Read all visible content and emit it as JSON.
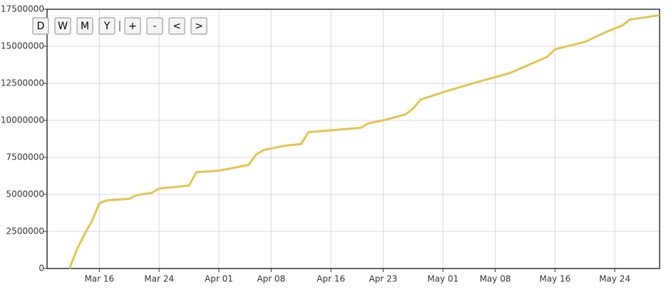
{
  "chart_data": {
    "type": "line",
    "x": [
      "Mar 12",
      "Mar 13",
      "Mar 14",
      "Mar 15",
      "Mar 16",
      "Mar 17",
      "Mar 20",
      "Mar 21",
      "Mar 23",
      "Mar 24",
      "Mar 28",
      "Mar 29",
      "Apr 01",
      "Apr 03",
      "Apr 05",
      "Apr 06",
      "Apr 07",
      "Apr 10",
      "Apr 12",
      "Apr 13",
      "Apr 20",
      "Apr 21",
      "Apr 23",
      "Apr 26",
      "Apr 27",
      "Apr 28",
      "May 01",
      "May 05",
      "May 10",
      "May 15",
      "May 16",
      "May 20",
      "May 23",
      "May 25",
      "May 26",
      "May 30"
    ],
    "series": [
      {
        "color": "#e6c24f",
        "values": [
          0,
          1300000,
          2300000,
          3200000,
          4400000,
          4600000,
          4700000,
          4950000,
          5100000,
          5400000,
          5600000,
          6500000,
          6600000,
          6800000,
          7000000,
          7700000,
          8000000,
          8300000,
          8400000,
          9200000,
          9500000,
          9800000,
          10000000,
          10400000,
          10800000,
          11400000,
          11900000,
          12500000,
          13200000,
          14300000,
          14800000,
          15300000,
          16000000,
          16400000,
          16800000,
          17100000
        ]
      }
    ],
    "xlim": [
      "Mar 09",
      "May 30"
    ],
    "xticks": [
      "Mar 16",
      "Mar 24",
      "Apr 01",
      "Apr 08",
      "Apr 16",
      "Apr 23",
      "May 01",
      "May 08",
      "May 16",
      "May 24"
    ],
    "ylim": [
      0,
      17500000
    ],
    "yticks": [
      0,
      2500000,
      5000000,
      7500000,
      10000000,
      12500000,
      15000000,
      17500000
    ],
    "grid": true
  },
  "controls": [
    "D",
    "W",
    "M",
    "Y",
    "+",
    "-",
    "<",
    ">"
  ]
}
